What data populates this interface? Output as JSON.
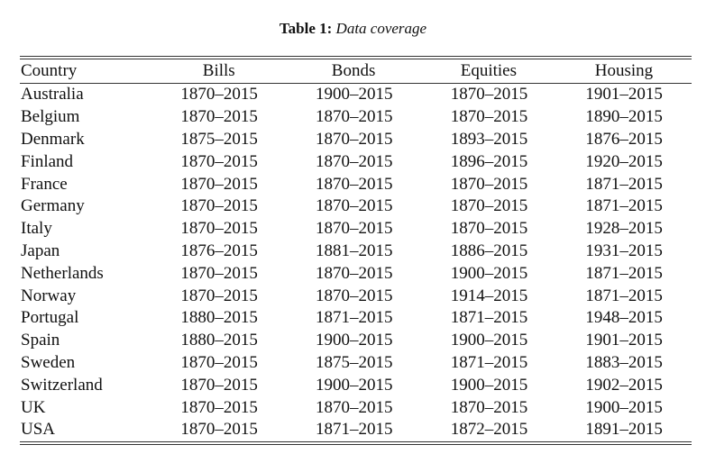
{
  "caption": {
    "label": "Table 1:",
    "text": "Data coverage"
  },
  "table": {
    "headers": [
      "Country",
      "Bills",
      "Bonds",
      "Equities",
      "Housing"
    ],
    "rows": [
      [
        "Australia",
        "1870–2015",
        "1900–2015",
        "1870–2015",
        "1901–2015"
      ],
      [
        "Belgium",
        "1870–2015",
        "1870–2015",
        "1870–2015",
        "1890–2015"
      ],
      [
        "Denmark",
        "1875–2015",
        "1870–2015",
        "1893–2015",
        "1876–2015"
      ],
      [
        "Finland",
        "1870–2015",
        "1870–2015",
        "1896–2015",
        "1920–2015"
      ],
      [
        "France",
        "1870–2015",
        "1870–2015",
        "1870–2015",
        "1871–2015"
      ],
      [
        "Germany",
        "1870–2015",
        "1870–2015",
        "1870–2015",
        "1871–2015"
      ],
      [
        "Italy",
        "1870–2015",
        "1870–2015",
        "1870–2015",
        "1928–2015"
      ],
      [
        "Japan",
        "1876–2015",
        "1881–2015",
        "1886–2015",
        "1931–2015"
      ],
      [
        "Netherlands",
        "1870–2015",
        "1870–2015",
        "1900–2015",
        "1871–2015"
      ],
      [
        "Norway",
        "1870–2015",
        "1870–2015",
        "1914–2015",
        "1871–2015"
      ],
      [
        "Portugal",
        "1880–2015",
        "1871–2015",
        "1871–2015",
        "1948–2015"
      ],
      [
        "Spain",
        "1880–2015",
        "1900–2015",
        "1900–2015",
        "1901–2015"
      ],
      [
        "Sweden",
        "1870–2015",
        "1875–2015",
        "1871–2015",
        "1883–2015"
      ],
      [
        "Switzerland",
        "1870–2015",
        "1900–2015",
        "1900–2015",
        "1902–2015"
      ],
      [
        "UK",
        "1870–2015",
        "1870–2015",
        "1870–2015",
        "1900–2015"
      ],
      [
        "USA",
        "1870–2015",
        "1871–2015",
        "1872–2015",
        "1891–2015"
      ]
    ]
  }
}
